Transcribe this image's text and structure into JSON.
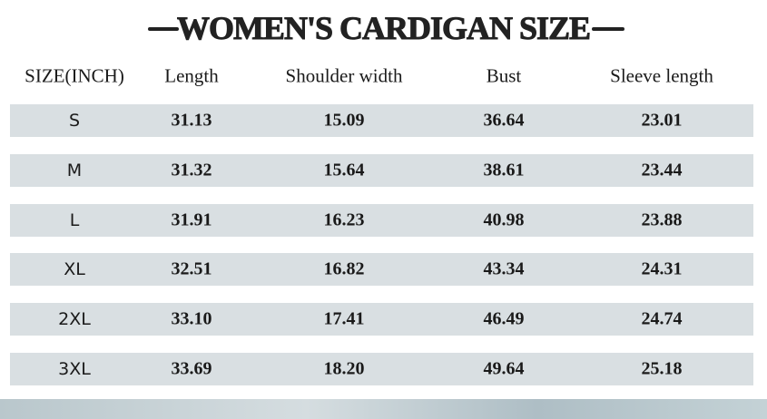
{
  "header": {
    "title": "WOMEN'S CARDIGAN SIZE"
  },
  "table": {
    "columns": [
      "SIZE(INCH)",
      "Length",
      "Shoulder width",
      "Bust",
      "Sleeve length"
    ],
    "rows": [
      [
        "S",
        "31.13",
        "15.09",
        "36.64",
        "23.01"
      ],
      [
        "M",
        "31.32",
        "15.64",
        "38.61",
        "23.44"
      ],
      [
        "L",
        "31.91",
        "16.23",
        "40.98",
        "23.88"
      ],
      [
        "XL",
        "32.51",
        "16.82",
        "43.34",
        "24.31"
      ],
      [
        "2XL",
        "33.10",
        "17.41",
        "46.49",
        "24.74"
      ],
      [
        "3XL",
        "33.69",
        "18.20",
        "49.64",
        "25.18"
      ]
    ]
  }
}
